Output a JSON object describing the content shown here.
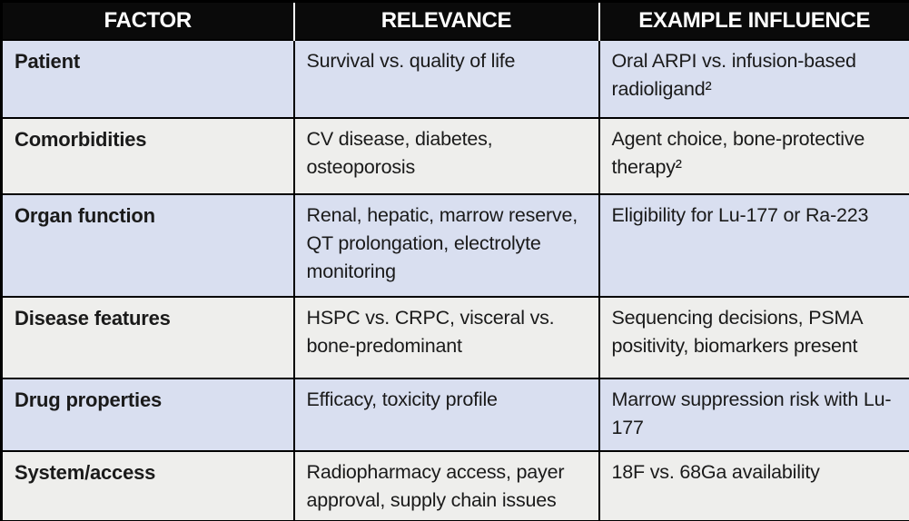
{
  "colors": {
    "header-bg": "#0a0a0a",
    "header-text": "#ffffff",
    "row-blue": "#d9dff0",
    "row-gray": "#eeeeec",
    "body-text": "#1a1a1a",
    "border-color": "#000000"
  },
  "table": {
    "columns": [
      {
        "label": "FACTOR"
      },
      {
        "label": "RELEVANCE"
      },
      {
        "label": "EXAMPLE INFLUENCE"
      }
    ],
    "rows": [
      {
        "factor": "Patient",
        "relevance": "Survival vs. quality of life",
        "example": "Oral ARPI vs. infusion-based radioligand²"
      },
      {
        "factor": "Comorbidities",
        "relevance": "CV disease, diabetes, osteoporosis",
        "example": "Agent choice, bone-protective therapy²"
      },
      {
        "factor": "Organ function",
        "relevance": "Renal, hepatic, marrow reserve, QT prolongation, electrolyte monitoring",
        "example": "Eligibility for Lu-177 or Ra-223"
      },
      {
        "factor": "Disease features",
        "relevance": "HSPC vs. CRPC, visceral vs. bone-predominant",
        "example": "Sequencing decisions, PSMA positivity, biomarkers present"
      },
      {
        "factor": "Drug properties",
        "relevance": "Efficacy, toxicity profile",
        "example": "Marrow suppression risk with Lu-177"
      },
      {
        "factor": "System/access",
        "relevance": "Radiopharmacy access, payer approval, supply chain issues",
        "example": "18F vs. 68Ga availability"
      }
    ]
  }
}
